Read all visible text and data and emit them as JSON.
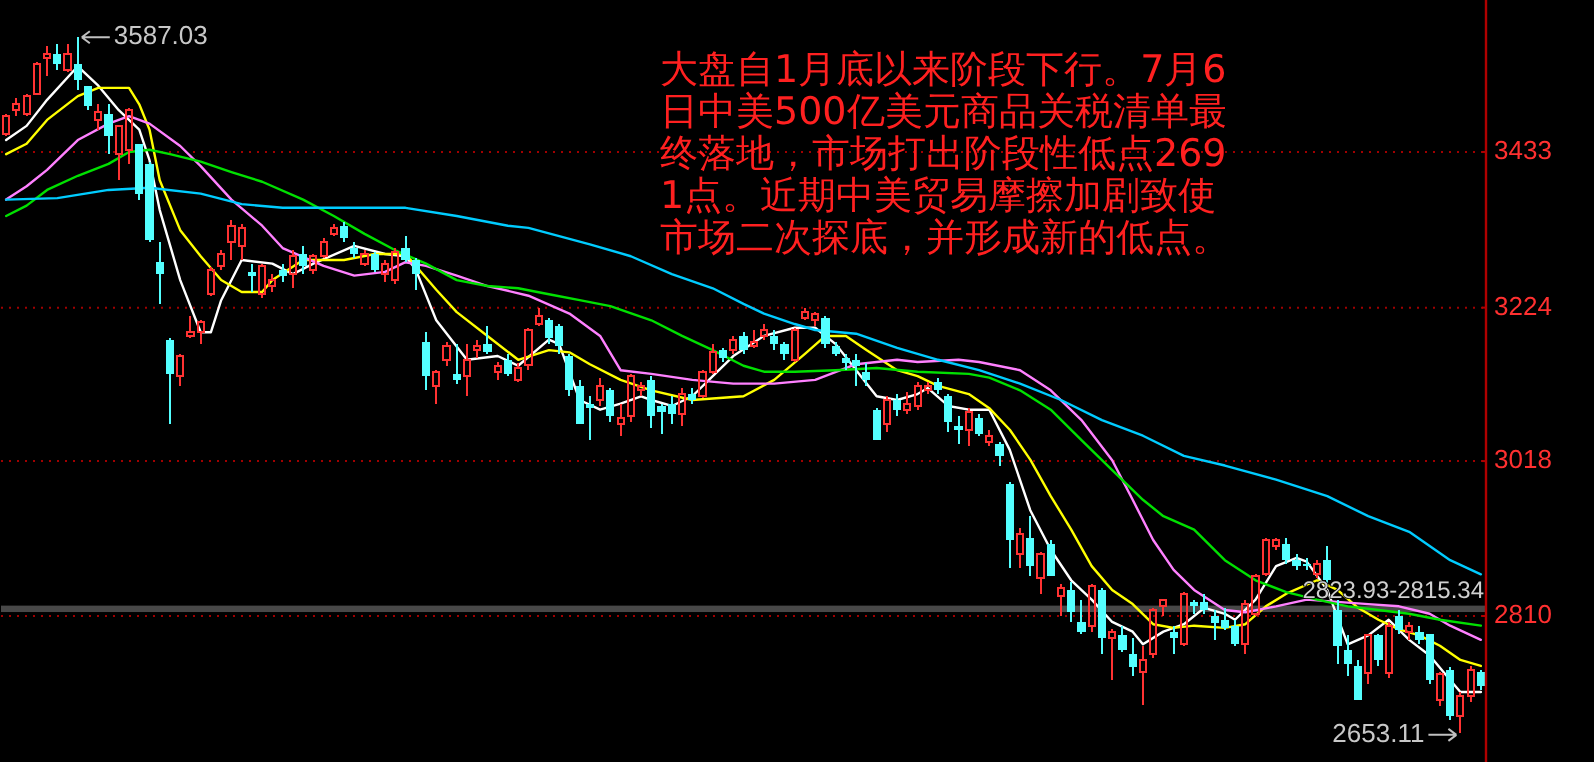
{
  "chart_data": {
    "type": "candlestick",
    "categories": [
      null,
      null,
      null,
      null,
      null,
      null,
      null,
      null,
      null,
      null,
      null,
      null,
      null,
      null,
      null,
      null,
      null,
      null,
      null,
      null,
      null,
      null,
      null,
      null,
      null,
      null,
      null,
      null,
      null,
      null,
      null,
      null,
      null,
      null,
      null,
      null,
      null,
      null,
      null,
      null,
      null,
      null,
      null,
      null,
      null,
      null,
      null,
      null,
      null,
      null,
      null,
      null,
      null,
      null,
      null,
      null,
      null,
      null,
      null,
      null,
      null,
      null,
      null,
      null,
      null,
      null,
      null,
      null,
      null,
      null,
      null,
      null,
      null,
      null,
      null,
      null,
      null,
      null,
      null,
      null,
      null,
      null,
      null,
      null,
      null,
      null,
      null,
      null,
      null,
      null,
      null,
      null,
      null,
      null,
      null,
      null,
      null,
      null,
      null,
      null,
      null,
      null,
      null,
      null,
      null,
      null,
      null,
      null,
      null,
      null,
      null,
      null,
      null,
      null,
      null,
      null,
      null,
      null,
      null,
      null,
      null,
      null,
      null,
      null,
      null,
      null,
      null,
      null,
      null,
      null,
      null,
      null,
      null,
      null,
      null,
      null,
      null,
      null,
      null,
      null,
      null,
      null,
      null,
      null,
      null
    ],
    "ohlc": [
      [
        3457,
        3484,
        3454,
        3481
      ],
      [
        3489,
        3505,
        3481,
        3497
      ],
      [
        3484,
        3511,
        3481,
        3508
      ],
      [
        3511,
        3554,
        3511,
        3551
      ],
      [
        3559,
        3575,
        3535,
        3565
      ],
      [
        3565,
        3578,
        3543,
        3551
      ],
      [
        3543,
        3578,
        3540,
        3565
      ],
      [
        3551,
        3587.03,
        3516,
        3530
      ],
      [
        3522,
        3522,
        3489,
        3495
      ],
      [
        3476,
        3497,
        3463,
        3487
      ],
      [
        3484,
        3497,
        3430,
        3454
      ],
      [
        3430,
        3468,
        3395,
        3468
      ],
      [
        3436,
        3492,
        3417,
        3489
      ],
      [
        3444,
        3444,
        3369,
        3377
      ],
      [
        3417,
        3420,
        3312,
        3315
      ],
      [
        3285,
        3312,
        3229,
        3269
      ],
      [
        3181,
        3183,
        3068,
        3135
      ],
      [
        3132,
        3162,
        3119,
        3159
      ],
      [
        3186,
        3213,
        3183,
        3191
      ],
      [
        3191,
        3208,
        3175,
        3205
      ],
      [
        3242,
        3278,
        3240,
        3275
      ],
      [
        3280,
        3301,
        3274,
        3296
      ],
      [
        3312,
        3342,
        3288,
        3334
      ],
      [
        3307,
        3336,
        3288,
        3331
      ],
      [
        3272,
        3283,
        3245,
        3267
      ],
      [
        3242,
        3283,
        3237,
        3280
      ],
      [
        3253,
        3269,
        3245,
        3261
      ],
      [
        3275,
        3283,
        3259,
        3267
      ],
      [
        3269,
        3301,
        3250,
        3293
      ],
      [
        3296,
        3307,
        3269,
        3280
      ],
      [
        3275,
        3296,
        3269,
        3293
      ],
      [
        3293,
        3318,
        3290,
        3312
      ],
      [
        3323,
        3336,
        3320,
        3331
      ],
      [
        3334,
        3339,
        3312,
        3318
      ],
      [
        3304,
        3312,
        3290,
        3296
      ],
      [
        3283,
        3301,
        3280,
        3296
      ],
      [
        3296,
        3299,
        3272,
        3275
      ],
      [
        3269,
        3288,
        3259,
        3283
      ],
      [
        3261,
        3304,
        3256,
        3299
      ],
      [
        3304,
        3320,
        3285,
        3288
      ],
      [
        3288,
        3291,
        3248,
        3269
      ],
      [
        3178,
        3191,
        3113,
        3132
      ],
      [
        3119,
        3140,
        3095,
        3138
      ],
      [
        3154,
        3178,
        3146,
        3173
      ],
      [
        3135,
        3175,
        3121,
        3127
      ],
      [
        3132,
        3175,
        3105,
        3154
      ],
      [
        3167,
        3181,
        3156,
        3173
      ],
      [
        3175,
        3199,
        3162,
        3164
      ],
      [
        3138,
        3151,
        3127,
        3146
      ],
      [
        3154,
        3162,
        3132,
        3135
      ],
      [
        3127,
        3149,
        3124,
        3143
      ],
      [
        3147,
        3196,
        3140,
        3194
      ],
      [
        3202,
        3224,
        3199,
        3213
      ],
      [
        3208,
        3210,
        3175,
        3183
      ],
      [
        3199,
        3202,
        3162,
        3172
      ],
      [
        3159,
        3162,
        3105,
        3113
      ],
      [
        3119,
        3127,
        3068,
        3068
      ],
      [
        3095,
        3105,
        3046,
        3089
      ],
      [
        3100,
        3129,
        3092,
        3119
      ],
      [
        3113,
        3116,
        3071,
        3079
      ],
      [
        3068,
        3095,
        3052,
        3076
      ],
      [
        3079,
        3135,
        3071,
        3132
      ],
      [
        3113,
        3124,
        3105,
        3119
      ],
      [
        3127,
        3132,
        3063,
        3079
      ],
      [
        3092,
        3095,
        3055,
        3084
      ],
      [
        3095,
        3105,
        3068,
        3081
      ],
      [
        3081,
        3116,
        3065,
        3108
      ],
      [
        3108,
        3116,
        3095,
        3100
      ],
      [
        3105,
        3140,
        3103,
        3138
      ],
      [
        3138,
        3175,
        3135,
        3164
      ],
      [
        3167,
        3170,
        3151,
        3156
      ],
      [
        3167,
        3186,
        3162,
        3181
      ],
      [
        3186,
        3191,
        3162,
        3167
      ],
      [
        3173,
        3194,
        3170,
        3178
      ],
      [
        3186,
        3202,
        3181,
        3194
      ],
      [
        3186,
        3194,
        3167,
        3175
      ],
      [
        3175,
        3178,
        3154,
        3162
      ],
      [
        3154,
        3196,
        3151,
        3194
      ],
      [
        3210,
        3224,
        3208,
        3218
      ],
      [
        3208,
        3218,
        3199,
        3216
      ],
      [
        3210,
        3213,
        3170,
        3175
      ],
      [
        3173,
        3178,
        3159,
        3162
      ],
      [
        3157,
        3162,
        3140,
        3149
      ],
      [
        3154,
        3162,
        3119,
        3146
      ],
      [
        3138,
        3149,
        3119,
        3127
      ],
      [
        3087,
        3089,
        3046,
        3046
      ],
      [
        3068,
        3105,
        3057,
        3100
      ],
      [
        3100,
        3108,
        3079,
        3087
      ],
      [
        3087,
        3111,
        3081,
        3095
      ],
      [
        3092,
        3124,
        3087,
        3119
      ],
      [
        3113,
        3124,
        3108,
        3119
      ],
      [
        3124,
        3129,
        3108,
        3113
      ],
      [
        3105,
        3108,
        3057,
        3071
      ],
      [
        3065,
        3079,
        3041,
        3060
      ],
      [
        3060,
        3089,
        3038,
        3084
      ],
      [
        3076,
        3081,
        3052,
        3055
      ],
      [
        3044,
        3060,
        3038,
        3052
      ],
      [
        3041,
        3044,
        3011,
        3025
      ],
      [
        2987,
        2990,
        2874,
        2912
      ],
      [
        2893,
        2928,
        2874,
        2920
      ],
      [
        2915,
        2944,
        2864,
        2877
      ],
      [
        2861,
        2896,
        2840,
        2893
      ],
      [
        2907,
        2912,
        2864,
        2864
      ],
      [
        2837,
        2853,
        2810,
        2848
      ],
      [
        2845,
        2856,
        2802,
        2816
      ],
      [
        2802,
        2832,
        2786,
        2789
      ],
      [
        2797,
        2853,
        2789,
        2850
      ],
      [
        2845,
        2848,
        2759,
        2781
      ],
      [
        2781,
        2792,
        2724,
        2789
      ],
      [
        2784,
        2797,
        2762,
        2765
      ],
      [
        2759,
        2781,
        2730,
        2741
      ],
      [
        2735,
        2770,
        2691,
        2751
      ],
      [
        2759,
        2821,
        2754,
        2818
      ],
      [
        2824,
        2832,
        2810,
        2832
      ],
      [
        2789,
        2797,
        2759,
        2781
      ],
      [
        2773,
        2842,
        2770,
        2840
      ],
      [
        2829,
        2832,
        2813,
        2824
      ],
      [
        2829,
        2840,
        2813,
        2818
      ],
      [
        2810,
        2818,
        2778,
        2800
      ],
      [
        2805,
        2821,
        2791,
        2794
      ],
      [
        2797,
        2805,
        2770,
        2773
      ],
      [
        2773,
        2832,
        2759,
        2826
      ],
      [
        2813,
        2866,
        2810,
        2864
      ],
      [
        2866,
        2915,
        2864,
        2912
      ],
      [
        2904,
        2915,
        2899,
        2912
      ],
      [
        2907,
        2915,
        2880,
        2885
      ],
      [
        2885,
        2893,
        2872,
        2877
      ],
      [
        2880,
        2888,
        2872,
        2877
      ],
      [
        2866,
        2885,
        2861,
        2880
      ],
      [
        2885,
        2904,
        2850,
        2858
      ],
      [
        2818,
        2832,
        2746,
        2770
      ],
      [
        2765,
        2784,
        2730,
        2746
      ],
      [
        2743,
        2751,
        2697,
        2697
      ],
      [
        2733,
        2786,
        2719,
        2784
      ],
      [
        2784,
        2786,
        2743,
        2751
      ],
      [
        2733,
        2802,
        2727,
        2797
      ],
      [
        2810,
        2818,
        2786,
        2791
      ],
      [
        2789,
        2802,
        2778,
        2797
      ],
      [
        2789,
        2797,
        2773,
        2778
      ],
      [
        2786,
        2786,
        2719,
        2724
      ],
      [
        2697,
        2735,
        2689,
        2732
      ],
      [
        2738,
        2741,
        2670,
        2676
      ],
      [
        2676,
        2708,
        2653.11,
        2703
      ],
      [
        2703,
        2743,
        2695,
        2738
      ],
      [
        2735,
        2738,
        2711,
        2716
      ]
    ],
    "series": [
      {
        "type": "line",
        "color": "#ffffff",
        "values": [
          3449,
          null,
          3468,
          null,
          3503,
          null,
          null,
          3548,
          null,
          3522,
          null,
          3489,
          null,
          3463,
          3422,
          3355,
          null,
          3261,
          null,
          3191,
          3191,
          3234,
          null,
          3288,
          null,
          null,
          3283,
          null,
          3269,
          null,
          3283,
          null,
          null,
          null,
          3307,
          null,
          null,
          3296,
          null,
          3293,
          3275,
          null,
          3207,
          null,
          null,
          3154,
          null,
          null,
          3159,
          null,
          3146,
          null,
          null,
          3181,
          3175,
          null,
          3100,
          null,
          3087,
          null,
          3095,
          null,
          3105,
          3100,
          null,
          3092,
          null,
          3105,
          null,
          3132,
          null,
          3159,
          null,
          null,
          3186,
          null,
          null,
          3197,
          null,
          3197,
          null,
          3175,
          null,
          3140,
          null,
          3105,
          null,
          3100,
          null,
          3108,
          3116,
          null,
          3092,
          null,
          3087,
          null,
          3087,
          null,
          3033,
          null,
          2952,
          null,
          2899,
          null,
          2858,
          null,
          2832,
          null,
          2802,
          null,
          2789,
          2772,
          null,
          2789,
          null,
          2799,
          null,
          2821,
          null,
          2813,
          2805,
          null,
          2832,
          null,
          2877,
          null,
          2888,
          2883,
          null,
          2845,
          null,
          2772,
          null,
          2784,
          null,
          2805,
          null,
          2778,
          null,
          2757,
          null,
          2724,
          2708,
          null,
          2708
        ]
      },
      {
        "type": "line",
        "color": "#ffff00",
        "values": [
          3430,
          null,
          3444,
          null,
          3476,
          null,
          null,
          3508,
          null,
          3519,
          null,
          null,
          3519,
          3497,
          3463,
          3395,
          null,
          3328,
          null,
          3293,
          null,
          3261,
          null,
          3245,
          null,
          3245,
          3261,
          null,
          null,
          3288,
          null,
          null,
          null,
          3288,
          null,
          null,
          3296,
          null,
          null,
          3296,
          null,
          null,
          3248,
          null,
          3218,
          null,
          null,
          3186,
          null,
          null,
          3154,
          null,
          null,
          3167,
          null,
          3164,
          null,
          3148,
          null,
          null,
          3127,
          null,
          null,
          3113,
          null,
          null,
          null,
          3100,
          null,
          null,
          null,
          null,
          3105,
          null,
          null,
          3127,
          null,
          null,
          3162,
          null,
          3186,
          null,
          3186,
          null,
          3167,
          null,
          null,
          3140,
          null,
          3132,
          null,
          3119,
          null,
          null,
          3108,
          null,
          3089,
          null,
          3060,
          null,
          3020,
          null,
          2971,
          null,
          2926,
          null,
          2877,
          null,
          2845,
          null,
          2826,
          null,
          2799,
          null,
          2794,
          null,
          2797,
          null,
          null,
          2794,
          null,
          2799,
          null,
          2823,
          null,
          2840,
          null,
          null,
          2858,
          null,
          2845,
          null,
          2821,
          null,
          2805,
          null,
          2792,
          null,
          2784,
          null,
          2770,
          null,
          2751,
          null,
          2743
        ]
      },
      {
        "type": "line",
        "color": "#ff80ff",
        "values": [
          3369,
          null,
          3387,
          null,
          3409,
          null,
          null,
          3449,
          null,
          null,
          3471,
          null,
          3481,
          null,
          3471,
          null,
          null,
          3441,
          null,
          3414,
          null,
          null,
          3369,
          null,
          null,
          3334,
          null,
          3304,
          null,
          null,
          null,
          3280,
          null,
          null,
          3267,
          null,
          null,
          3272,
          null,
          3285,
          null,
          3280,
          null,
          null,
          3267,
          null,
          null,
          3253,
          null,
          null,
          null,
          3240,
          null,
          null,
          null,
          3216,
          null,
          null,
          3186,
          null,
          3140,
          null,
          null,
          3135,
          null,
          null,
          null,
          3127,
          null,
          null,
          null,
          3122,
          null,
          null,
          null,
          3122,
          null,
          null,
          null,
          3127,
          null,
          null,
          null,
          3148,
          null,
          null,
          null,
          3154,
          null,
          3151,
          null,
          null,
          null,
          3154,
          null,
          3151,
          null,
          null,
          null,
          3140,
          null,
          null,
          3113,
          null,
          null,
          3073,
          null,
          null,
          3019,
          null,
          2966,
          null,
          2912,
          null,
          2872,
          null,
          2845,
          null,
          null,
          2818,
          null,
          2815,
          null,
          null,
          2823,
          null,
          null,
          2832,
          null,
          null,
          2829,
          null,
          null,
          2826,
          null,
          null,
          2823,
          null,
          null,
          2813,
          null,
          2797,
          null,
          null,
          2778
        ]
      },
      {
        "type": "line",
        "color": "#00e000",
        "values": [
          3347,
          null,
          3361,
          null,
          3382,
          null,
          null,
          3401,
          null,
          null,
          3417,
          null,
          3433,
          null,
          3436,
          null,
          3430,
          null,
          null,
          3420,
          null,
          null,
          3406,
          null,
          null,
          3393,
          null,
          null,
          null,
          3369,
          null,
          null,
          3347,
          null,
          null,
          3323,
          null,
          null,
          3301,
          null,
          null,
          3283,
          null,
          null,
          3261,
          null,
          null,
          3253,
          null,
          null,
          3250,
          null,
          null,
          3242,
          null,
          null,
          3234,
          null,
          null,
          3226,
          null,
          null,
          null,
          3207,
          null,
          null,
          3186,
          null,
          null,
          3167,
          null,
          null,
          3146,
          null,
          3138,
          null,
          null,
          3138,
          null,
          null,
          null,
          3140,
          null,
          null,
          null,
          3143,
          null,
          null,
          null,
          3138,
          null,
          null,
          null,
          null,
          3135,
          null,
          3130,
          null,
          null,
          3113,
          null,
          null,
          3087,
          null,
          null,
          3046,
          null,
          null,
          3006,
          null,
          null,
          2966,
          null,
          2944,
          null,
          null,
          2926,
          null,
          null,
          2885,
          null,
          null,
          2858,
          null,
          null,
          2842,
          null,
          null,
          2832,
          null,
          null,
          2823,
          null,
          null,
          2818,
          null,
          null,
          2813,
          null,
          null,
          2805,
          null,
          null,
          null,
          2797
        ]
      },
      {
        "type": "line",
        "color": "#00ccff",
        "values": [
          3369,
          null,
          null,
          null,
          null,
          3371,
          null,
          null,
          null,
          null,
          3382,
          null,
          null,
          null,
          3385,
          null,
          null,
          null,
          null,
          3377,
          null,
          null,
          null,
          3363,
          null,
          null,
          null,
          3358,
          null,
          null,
          null,
          null,
          null,
          3358,
          null,
          null,
          null,
          null,
          null,
          3358,
          null,
          null,
          null,
          null,
          3347,
          null,
          null,
          null,
          null,
          3334,
          null,
          3331,
          null,
          null,
          null,
          null,
          null,
          3309,
          null,
          null,
          null,
          3293,
          null,
          null,
          null,
          3269,
          null,
          null,
          null,
          3250,
          null,
          null,
          3229,
          null,
          3216,
          null,
          null,
          3202,
          null,
          3194,
          null,
          null,
          null,
          3189,
          null,
          null,
          null,
          3170,
          null,
          null,
          null,
          3154,
          null,
          null,
          null,
          3140,
          null,
          null,
          null,
          3122,
          null,
          null,
          null,
          3100,
          null,
          null,
          null,
          3073,
          null,
          null,
          null,
          3052,
          null,
          null,
          null,
          3025,
          null,
          null,
          null,
          3012,
          null,
          null,
          null,
          null,
          2993,
          null,
          null,
          null,
          null,
          2971,
          null,
          null,
          null,
          2944,
          null,
          null,
          null,
          2923,
          null,
          null,
          null,
          2885,
          null,
          null,
          2866
        ]
      }
    ],
    "ylim": [
      2614,
      3637
    ],
    "yticks": [
      2810,
      3018,
      3224,
      3433
    ],
    "tick_labels": "y",
    "grid": "y",
    "bands": [
      {
        "axis": "y",
        "from": 2815.34,
        "to": 2823.93,
        "label": "2823.93-2815.34",
        "color": "#a0a0a0"
      }
    ],
    "annotations": [
      "大盘自1月底以来阶段下行。7月6日中美500亿美元商品关税清单最终落地，市场打出阶段性低点2691点。近期中美贸易摩擦加剧致使市场二次探底，并形成新的低点。",
      "3587.03",
      "2653.11"
    ]
  }
}
